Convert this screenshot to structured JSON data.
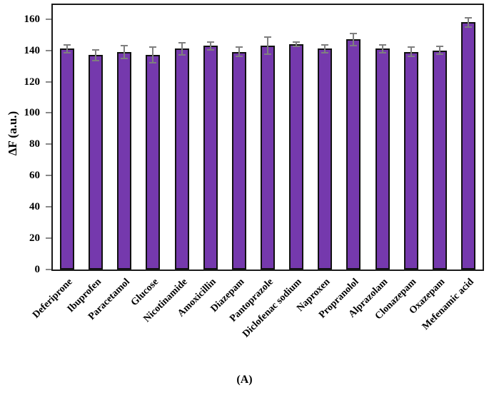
{
  "figure": {
    "panel_label": "(A)",
    "background": "#ffffff"
  },
  "chart_data": {
    "type": "bar",
    "title": "",
    "xlabel": "",
    "ylabel": "ΔF (a.u.)",
    "ylim": [
      0,
      169
    ],
    "yticks": [
      0,
      20,
      40,
      60,
      80,
      100,
      120,
      140,
      160
    ],
    "grid": false,
    "legend_position": "none",
    "categories": [
      "Deferiprone",
      "Ibuprofen",
      "Paracetamol",
      "Glucose",
      "Nicotinamide",
      "Amoxicillin",
      "Diazepam",
      "Pantoprazole",
      "Diclofenac sodium",
      "Naproxen",
      "Propranolol",
      "Alprazolam",
      "Clonazepam",
      "Oxazepam",
      "Mefenamic acid"
    ],
    "values": [
      141,
      137,
      139,
      137,
      141,
      143,
      139,
      143,
      144,
      141,
      147,
      141,
      139,
      140,
      158
    ],
    "errors": [
      2.5,
      3.5,
      4,
      5,
      4,
      2.5,
      3,
      5.5,
      1.5,
      2.5,
      4,
      2.5,
      3,
      2.5,
      3
    ],
    "bar_color": "#7539AD",
    "bar_border_color": "#111111",
    "error_color": "#7f7f7f",
    "axis_color": "#1a1a1a"
  }
}
